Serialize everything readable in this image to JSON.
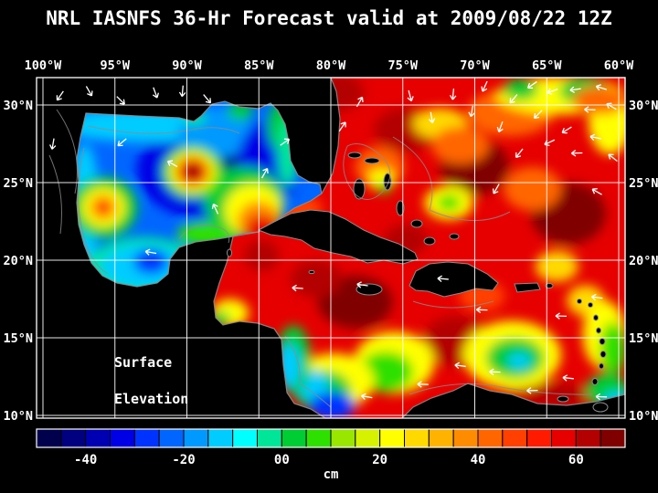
{
  "title": "NRL IASNFS  36-Hr Forecast valid at 2009/08/22 12Z",
  "annotation": {
    "line1": "Surface",
    "line2": "Elevation"
  },
  "axes": {
    "lon_ticks": [
      "100°W",
      "95°W",
      "90°W",
      "85°W",
      "80°W",
      "75°W",
      "70°W",
      "65°W",
      "60°W"
    ],
    "lon_values": [
      100,
      95,
      90,
      85,
      80,
      75,
      70,
      65,
      60
    ],
    "lat_ticks": [
      "30°N",
      "25°N",
      "20°N",
      "15°N",
      "10°N"
    ],
    "lat_values": [
      30,
      25,
      20,
      15,
      10
    ]
  },
  "colorbar": {
    "unit": "cm",
    "tick_labels": [
      "-40",
      "-20",
      "00",
      "20",
      "40",
      "60"
    ],
    "tick_values": [
      -40,
      -20,
      0,
      20,
      40,
      60
    ],
    "colors": [
      "#00004d",
      "#000080",
      "#0000b3",
      "#0000e6",
      "#0033ff",
      "#0066ff",
      "#0099ff",
      "#00ccff",
      "#00ffff",
      "#00e699",
      "#00cc33",
      "#2ee000",
      "#99e600",
      "#d6f200",
      "#ffff00",
      "#ffd900",
      "#ffb300",
      "#ff8c00",
      "#ff6600",
      "#ff4000",
      "#ff1a00",
      "#e60000",
      "#b30000",
      "#800000"
    ]
  },
  "colors": {
    "background": "#000000",
    "text": "#ffffff",
    "grid": "#ffffff",
    "coastline": "#8c8c8c",
    "land": "#000000",
    "vectors": "#ffffff"
  },
  "chart_data": {
    "type": "heatmap",
    "title": "NRL IASNFS 36-Hr Forecast valid at 2009/08/22 12Z",
    "field": "sea surface elevation",
    "unit": "cm",
    "x": {
      "ticks": [
        100,
        95,
        90,
        85,
        80,
        75,
        70,
        65,
        60
      ],
      "unit": "degW"
    },
    "y": {
      "ticks": [
        30,
        25,
        20,
        15,
        10
      ],
      "unit": "degN"
    },
    "value_range": [
      -50,
      70
    ],
    "base_cm": {
      "gulf": -25,
      "carib": 55
    },
    "features": [
      {
        "basin": "gulf",
        "lon": 88.3,
        "lat": 25.8,
        "rx": 5.2,
        "ry": 3.2,
        "v": -33
      },
      {
        "basin": "gulf",
        "lon": 86.8,
        "lat": 26.2,
        "rx": 2.6,
        "ry": 2.2,
        "v": -44
      },
      {
        "basin": "gulf",
        "lon": 92.5,
        "lat": 28.7,
        "rx": 6.5,
        "ry": 1.1,
        "v": -12
      },
      {
        "basin": "gulf",
        "lon": 88.0,
        "lat": 28.2,
        "rx": 2.6,
        "ry": 1.6,
        "v": -16
      },
      {
        "basin": "gulf",
        "lon": 97.1,
        "lat": 23.5,
        "rx": 1.0,
        "ry": 4.0,
        "v": -13
      },
      {
        "basin": "gulf",
        "lon": 93.0,
        "lat": 19.5,
        "rx": 4.0,
        "ry": 2.0,
        "v": -3
      },
      {
        "basin": "gulf",
        "lon": 93.0,
        "lat": 19.6,
        "rx": 3.0,
        "ry": 1.4,
        "v": -12
      },
      {
        "basin": "gulf",
        "lon": 92.5,
        "lat": 19.9,
        "rx": 1.2,
        "ry": 0.8,
        "v": -30
      },
      {
        "basin": "gulf",
        "lon": 84.3,
        "lat": 26.2,
        "rx": 2.2,
        "ry": 2.8,
        "v": -31
      },
      {
        "basin": "gulf",
        "lon": 83.4,
        "lat": 28.6,
        "rx": 1.0,
        "ry": 1.6,
        "v": 0
      },
      {
        "basin": "gulf",
        "lon": 83.0,
        "lat": 27.0,
        "rx": 0.7,
        "ry": 2.2,
        "v": -2
      },
      {
        "basin": "gulf",
        "lon": 86.3,
        "lat": 29.6,
        "rx": 0.9,
        "ry": 0.6,
        "v": 2
      },
      {
        "basin": "gulf",
        "lon": 89.5,
        "lat": 29.2,
        "rx": 0.8,
        "ry": 0.5,
        "v": -2
      },
      {
        "basin": "gulf",
        "lon": 88.5,
        "lat": 21.7,
        "rx": 2.2,
        "ry": 0.8,
        "v": 5
      },
      {
        "basin": "gulf",
        "lon": 86.0,
        "lat": 23.8,
        "rx": 2.8,
        "ry": 2.2,
        "v": 0
      },
      {
        "basin": "gulf",
        "lon": 85.4,
        "lat": 23.2,
        "rx": 2.0,
        "ry": 1.7,
        "v": 20
      },
      {
        "basin": "gulf",
        "lon": 85.0,
        "lat": 22.5,
        "rx": 1.5,
        "ry": 1.3,
        "v": 38
      },
      {
        "basin": "gulf",
        "lon": 84.8,
        "lat": 22.0,
        "rx": 1.1,
        "ry": 0.9,
        "v": 55
      },
      {
        "basin": "gulf",
        "lon": 95.8,
        "lat": 23.4,
        "rx": 2.4,
        "ry": 2.0,
        "v": 0
      },
      {
        "basin": "gulf",
        "lon": 95.8,
        "lat": 23.4,
        "rx": 1.5,
        "ry": 1.3,
        "v": 22
      },
      {
        "basin": "gulf",
        "lon": 95.8,
        "lat": 23.4,
        "rx": 0.9,
        "ry": 0.8,
        "v": 38
      },
      {
        "basin": "gulf",
        "lon": 95.8,
        "lat": 23.4,
        "rx": 0.45,
        "ry": 0.4,
        "v": 52
      },
      {
        "basin": "gulf",
        "lon": 89.6,
        "lat": 25.7,
        "rx": 2.1,
        "ry": 1.7,
        "v": 5
      },
      {
        "basin": "gulf",
        "lon": 89.6,
        "lat": 25.7,
        "rx": 1.6,
        "ry": 1.3,
        "v": 22
      },
      {
        "basin": "gulf",
        "lon": 89.6,
        "lat": 25.7,
        "rx": 1.2,
        "ry": 1.0,
        "v": 40
      },
      {
        "basin": "gulf",
        "lon": 89.6,
        "lat": 25.7,
        "rx": 0.85,
        "ry": 0.7,
        "v": 57
      },
      {
        "basin": "gulf",
        "lon": 89.6,
        "lat": 25.7,
        "rx": 0.5,
        "ry": 0.42,
        "v": 68
      },
      {
        "basin": "carib",
        "lon": 79.5,
        "lat": 30.8,
        "rx": 1.8,
        "ry": 1.2,
        "v": 64
      },
      {
        "basin": "carib",
        "lon": 74.8,
        "lat": 28.4,
        "rx": 2.2,
        "ry": 1.4,
        "v": 63
      },
      {
        "basin": "carib",
        "lon": 70.0,
        "lat": 26.0,
        "rx": 2.4,
        "ry": 1.8,
        "v": 65
      },
      {
        "basin": "carib",
        "lon": 63.5,
        "lat": 23.0,
        "rx": 2.6,
        "ry": 2.0,
        "v": 66
      },
      {
        "basin": "carib",
        "lon": 74.8,
        "lat": 21.3,
        "rx": 1.5,
        "ry": 1.0,
        "v": 63
      },
      {
        "basin": "carib",
        "lon": 78.3,
        "lat": 17.3,
        "rx": 2.6,
        "ry": 1.7,
        "v": 65
      },
      {
        "basin": "carib",
        "lon": 71.3,
        "lat": 14.8,
        "rx": 2.3,
        "ry": 1.6,
        "v": 64
      },
      {
        "basin": "carib",
        "lon": 81.0,
        "lat": 18.8,
        "rx": 1.8,
        "ry": 1.2,
        "v": 62
      },
      {
        "basin": "carib",
        "lon": 84.8,
        "lat": 20.3,
        "rx": 1.2,
        "ry": 1.0,
        "v": 63
      },
      {
        "basin": "carib",
        "lon": 82.0,
        "lat": 23.3,
        "rx": 1.4,
        "ry": 0.9,
        "v": 46
      },
      {
        "basin": "carib",
        "lon": 66.5,
        "lat": 12.0,
        "rx": 1.7,
        "ry": 0.8,
        "v": 63
      },
      {
        "basin": "carib",
        "lon": 64.3,
        "lat": 11.3,
        "rx": 2.3,
        "ry": 0.8,
        "v": 62
      },
      {
        "basin": "carib",
        "lon": 71.8,
        "lat": 23.7,
        "rx": 1.7,
        "ry": 1.1,
        "v": 24
      },
      {
        "basin": "carib",
        "lon": 71.8,
        "lat": 23.7,
        "rx": 0.8,
        "ry": 0.5,
        "v": 6
      },
      {
        "basin": "carib",
        "lon": 76.6,
        "lat": 26.0,
        "rx": 1.7,
        "ry": 1.3,
        "v": 40
      },
      {
        "basin": "carib",
        "lon": 76.5,
        "lat": 25.2,
        "rx": 0.9,
        "ry": 0.7,
        "v": 24
      },
      {
        "basin": "carib",
        "lon": 76.3,
        "lat": 24.7,
        "rx": 0.5,
        "ry": 0.4,
        "v": 6
      },
      {
        "basin": "carib",
        "lon": 67.5,
        "lat": 29.5,
        "rx": 3.0,
        "ry": 1.5,
        "v": 40
      },
      {
        "basin": "carib",
        "lon": 64.0,
        "lat": 30.6,
        "rx": 4.5,
        "ry": 1.2,
        "v": 24
      },
      {
        "basin": "carib",
        "lon": 62.4,
        "lat": 30.9,
        "rx": 1.7,
        "ry": 0.9,
        "v": 4
      },
      {
        "basin": "carib",
        "lon": 66.8,
        "lat": 31.0,
        "rx": 1.2,
        "ry": 0.7,
        "v": 2
      },
      {
        "basin": "carib",
        "lon": 60.6,
        "lat": 29.0,
        "rx": 1.5,
        "ry": 2.2,
        "v": 24
      },
      {
        "basin": "carib",
        "lon": 61.3,
        "lat": 30.3,
        "rx": 1.9,
        "ry": 0.9,
        "v": 40
      },
      {
        "basin": "carib",
        "lon": 72.4,
        "lat": 28.8,
        "rx": 1.9,
        "ry": 1.0,
        "v": 26
      },
      {
        "basin": "carib",
        "lon": 71.0,
        "lat": 27.4,
        "rx": 2.0,
        "ry": 1.2,
        "v": 40
      },
      {
        "basin": "carib",
        "lon": 66.0,
        "lat": 24.6,
        "rx": 2.0,
        "ry": 1.4,
        "v": 42
      },
      {
        "basin": "carib",
        "lon": 64.3,
        "lat": 19.6,
        "rx": 1.5,
        "ry": 1.0,
        "v": 28
      },
      {
        "basin": "carib",
        "lon": 62.3,
        "lat": 17.4,
        "rx": 1.3,
        "ry": 1.0,
        "v": 26
      },
      {
        "basin": "carib",
        "lon": 69.5,
        "lat": 17.7,
        "rx": 1.6,
        "ry": 1.0,
        "v": 45
      },
      {
        "basin": "carib",
        "lon": 67.4,
        "lat": 13.9,
        "rx": 3.4,
        "ry": 2.2,
        "v": 22
      },
      {
        "basin": "carib",
        "lon": 67.2,
        "lat": 13.7,
        "rx": 2.0,
        "ry": 1.3,
        "v": 4
      },
      {
        "basin": "carib",
        "lon": 66.9,
        "lat": 13.5,
        "rx": 0.8,
        "ry": 0.5,
        "v": -12
      },
      {
        "basin": "carib",
        "lon": 75.6,
        "lat": 13.4,
        "rx": 2.8,
        "ry": 2.0,
        "v": 24
      },
      {
        "basin": "carib",
        "lon": 76.2,
        "lat": 12.8,
        "rx": 1.9,
        "ry": 1.3,
        "v": 6
      },
      {
        "basin": "carib",
        "lon": 79.8,
        "lat": 12.2,
        "rx": 2.8,
        "ry": 1.8,
        "v": 20
      },
      {
        "basin": "carib",
        "lon": 80.6,
        "lat": 11.6,
        "rx": 2.0,
        "ry": 1.3,
        "v": 2
      },
      {
        "basin": "carib",
        "lon": 81.4,
        "lat": 12.0,
        "rx": 1.2,
        "ry": 0.9,
        "v": -12
      },
      {
        "basin": "carib",
        "lon": 79.9,
        "lat": 10.6,
        "rx": 1.6,
        "ry": 0.9,
        "v": -26
      },
      {
        "basin": "carib",
        "lon": 82.6,
        "lat": 13.6,
        "rx": 1.2,
        "ry": 2.2,
        "v": 0
      },
      {
        "basin": "carib",
        "lon": 82.9,
        "lat": 13.2,
        "rx": 0.8,
        "ry": 1.4,
        "v": -12
      },
      {
        "basin": "carib",
        "lon": 87.0,
        "lat": 16.6,
        "rx": 1.3,
        "ry": 0.9,
        "v": 20
      },
      {
        "basin": "carib",
        "lon": 87.7,
        "lat": 16.2,
        "rx": 0.7,
        "ry": 0.5,
        "v": 2
      },
      {
        "basin": "carib",
        "lon": 61.0,
        "lat": 15.2,
        "rx": 1.5,
        "ry": 2.2,
        "v": 22
      },
      {
        "basin": "carib",
        "lon": 60.4,
        "lat": 14.3,
        "rx": 0.9,
        "ry": 1.7,
        "v": 8
      },
      {
        "basin": "carib",
        "lon": 60.8,
        "lat": 11.6,
        "rx": 1.5,
        "ry": 1.1,
        "v": 2
      },
      {
        "basin": "carib",
        "lon": 60.2,
        "lat": 10.8,
        "rx": 0.9,
        "ry": 0.7,
        "v": -12
      }
    ],
    "vectors": [
      [
        98.8,
        30.6,
        -125
      ],
      [
        96.8,
        30.9,
        -60
      ],
      [
        94.6,
        30.3,
        -45
      ],
      [
        92.2,
        30.8,
        -70
      ],
      [
        90.3,
        30.9,
        -95
      ],
      [
        88.6,
        30.4,
        -50
      ],
      [
        99.3,
        27.5,
        -100
      ],
      [
        94.5,
        27.6,
        -140
      ],
      [
        91.0,
        26.2,
        150
      ],
      [
        88.0,
        23.3,
        115
      ],
      [
        84.6,
        25.6,
        60
      ],
      [
        83.2,
        27.6,
        35
      ],
      [
        92.5,
        20.5,
        170
      ],
      [
        79.2,
        28.6,
        55
      ],
      [
        78.0,
        30.2,
        60
      ],
      [
        74.5,
        30.6,
        -75
      ],
      [
        73.0,
        29.2,
        -80
      ],
      [
        71.5,
        30.7,
        -95
      ],
      [
        70.2,
        29.6,
        -100
      ],
      [
        69.3,
        31.2,
        -115
      ],
      [
        68.2,
        28.6,
        -110
      ],
      [
        67.3,
        30.4,
        -130
      ],
      [
        66.0,
        31.3,
        -145
      ],
      [
        65.6,
        29.4,
        -135
      ],
      [
        64.6,
        30.9,
        -160
      ],
      [
        63.6,
        28.4,
        -148
      ],
      [
        63.0,
        31.0,
        -172
      ],
      [
        62.0,
        29.7,
        178
      ],
      [
        61.2,
        31.1,
        162
      ],
      [
        60.5,
        29.9,
        150
      ],
      [
        61.6,
        27.9,
        168
      ],
      [
        60.4,
        26.6,
        142
      ],
      [
        62.9,
        26.9,
        -178
      ],
      [
        64.8,
        27.6,
        -155
      ],
      [
        66.9,
        26.9,
        -128
      ],
      [
        68.5,
        24.6,
        -120
      ],
      [
        61.5,
        24.4,
        150
      ],
      [
        61.5,
        17.6,
        172
      ],
      [
        64.0,
        16.4,
        178
      ],
      [
        69.5,
        16.8,
        178
      ],
      [
        72.2,
        18.8,
        175
      ],
      [
        77.8,
        18.4,
        172
      ],
      [
        82.3,
        18.2,
        176
      ],
      [
        61.2,
        11.2,
        178
      ],
      [
        63.5,
        12.4,
        174
      ],
      [
        66.0,
        11.6,
        -178
      ],
      [
        68.6,
        12.8,
        178
      ],
      [
        71.0,
        13.2,
        172
      ],
      [
        73.6,
        12.0,
        178
      ],
      [
        77.5,
        11.2,
        170
      ]
    ]
  }
}
